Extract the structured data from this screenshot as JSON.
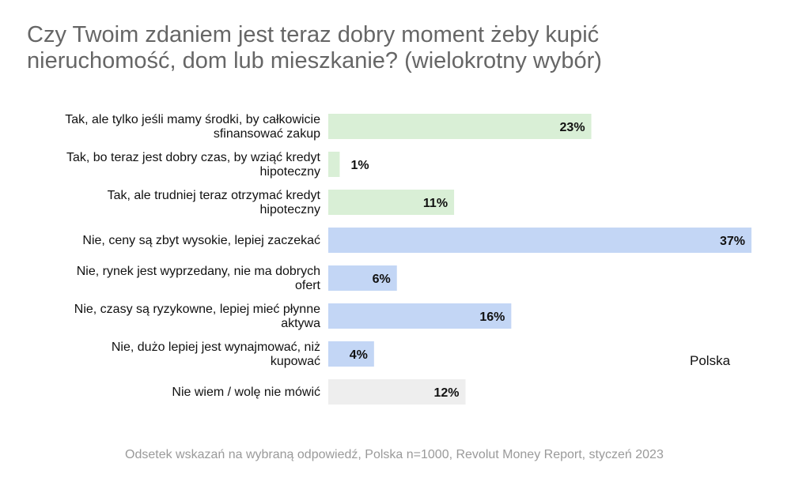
{
  "chart_data": {
    "type": "bar",
    "orientation": "horizontal",
    "title": "Czy Twoim zdaniem jest teraz dobry moment żeby kupić nieruchomość, dom lub mieszkanie? (wielokrotny wybór)",
    "categories": [
      "Tak, ale tylko jeśli mamy środki, by całkowicie sfinansować zakup",
      "Tak, bo teraz jest dobry czas, by wziąć kredyt hipoteczny",
      "Tak, ale trudniej teraz otrzymać kredyt hipoteczny",
      "Nie, ceny są zbyt wysokie, lepiej zaczekać",
      "Nie, rynek jest wyprzedany, nie ma dobrych ofert",
      "Nie, czasy są ryzykowne, lepiej mieć płynne aktywa",
      "Nie, dużo lepiej jest wynajmować, niż kupować",
      "Nie wiem / wolę nie mówić"
    ],
    "label_lines": [
      [
        "Tak, ale tylko jeśli mamy środki, by całkowicie",
        "sfinansować zakup"
      ],
      [
        "Tak, bo teraz jest dobry czas, by wziąć kredyt",
        "hipoteczny"
      ],
      [
        "Tak, ale trudniej teraz otrzymać kredyt",
        "hipoteczny"
      ],
      [
        "Nie, ceny są zbyt wysokie, lepiej zaczekać"
      ],
      [
        "Nie, rynek jest wyprzedany, nie ma dobrych",
        "ofert"
      ],
      [
        "Nie, czasy są ryzykowne, lepiej mieć płynne",
        "aktywa"
      ],
      [
        "Nie, dużo lepiej jest wynajmować, niż",
        "kupować"
      ],
      [
        "Nie wiem / wolę nie mówić"
      ]
    ],
    "values": [
      23,
      1,
      11,
      37,
      6,
      16,
      4,
      12
    ],
    "value_labels": [
      "23%",
      "1%",
      "11%",
      "37%",
      "6%",
      "16%",
      "4%",
      "12%"
    ],
    "groups": [
      "tak",
      "tak",
      "tak",
      "nie",
      "nie",
      "nie",
      "nie",
      "nie_wiem"
    ],
    "series": [
      {
        "name": "Polska",
        "values": [
          23,
          1,
          11,
          37,
          6,
          16,
          4,
          12
        ]
      }
    ],
    "legend": "Polska",
    "colors": {
      "tak": "#d9efd6",
      "nie": "#c3d6f5",
      "nie_wiem": "#eeeeee"
    },
    "xlim": [
      0,
      37
    ],
    "grid": false
  },
  "source_note": "Odsetek wskazań na wybraną odpowiedź, Polska n=1000, Revolut Money Report, styczeń 2023"
}
